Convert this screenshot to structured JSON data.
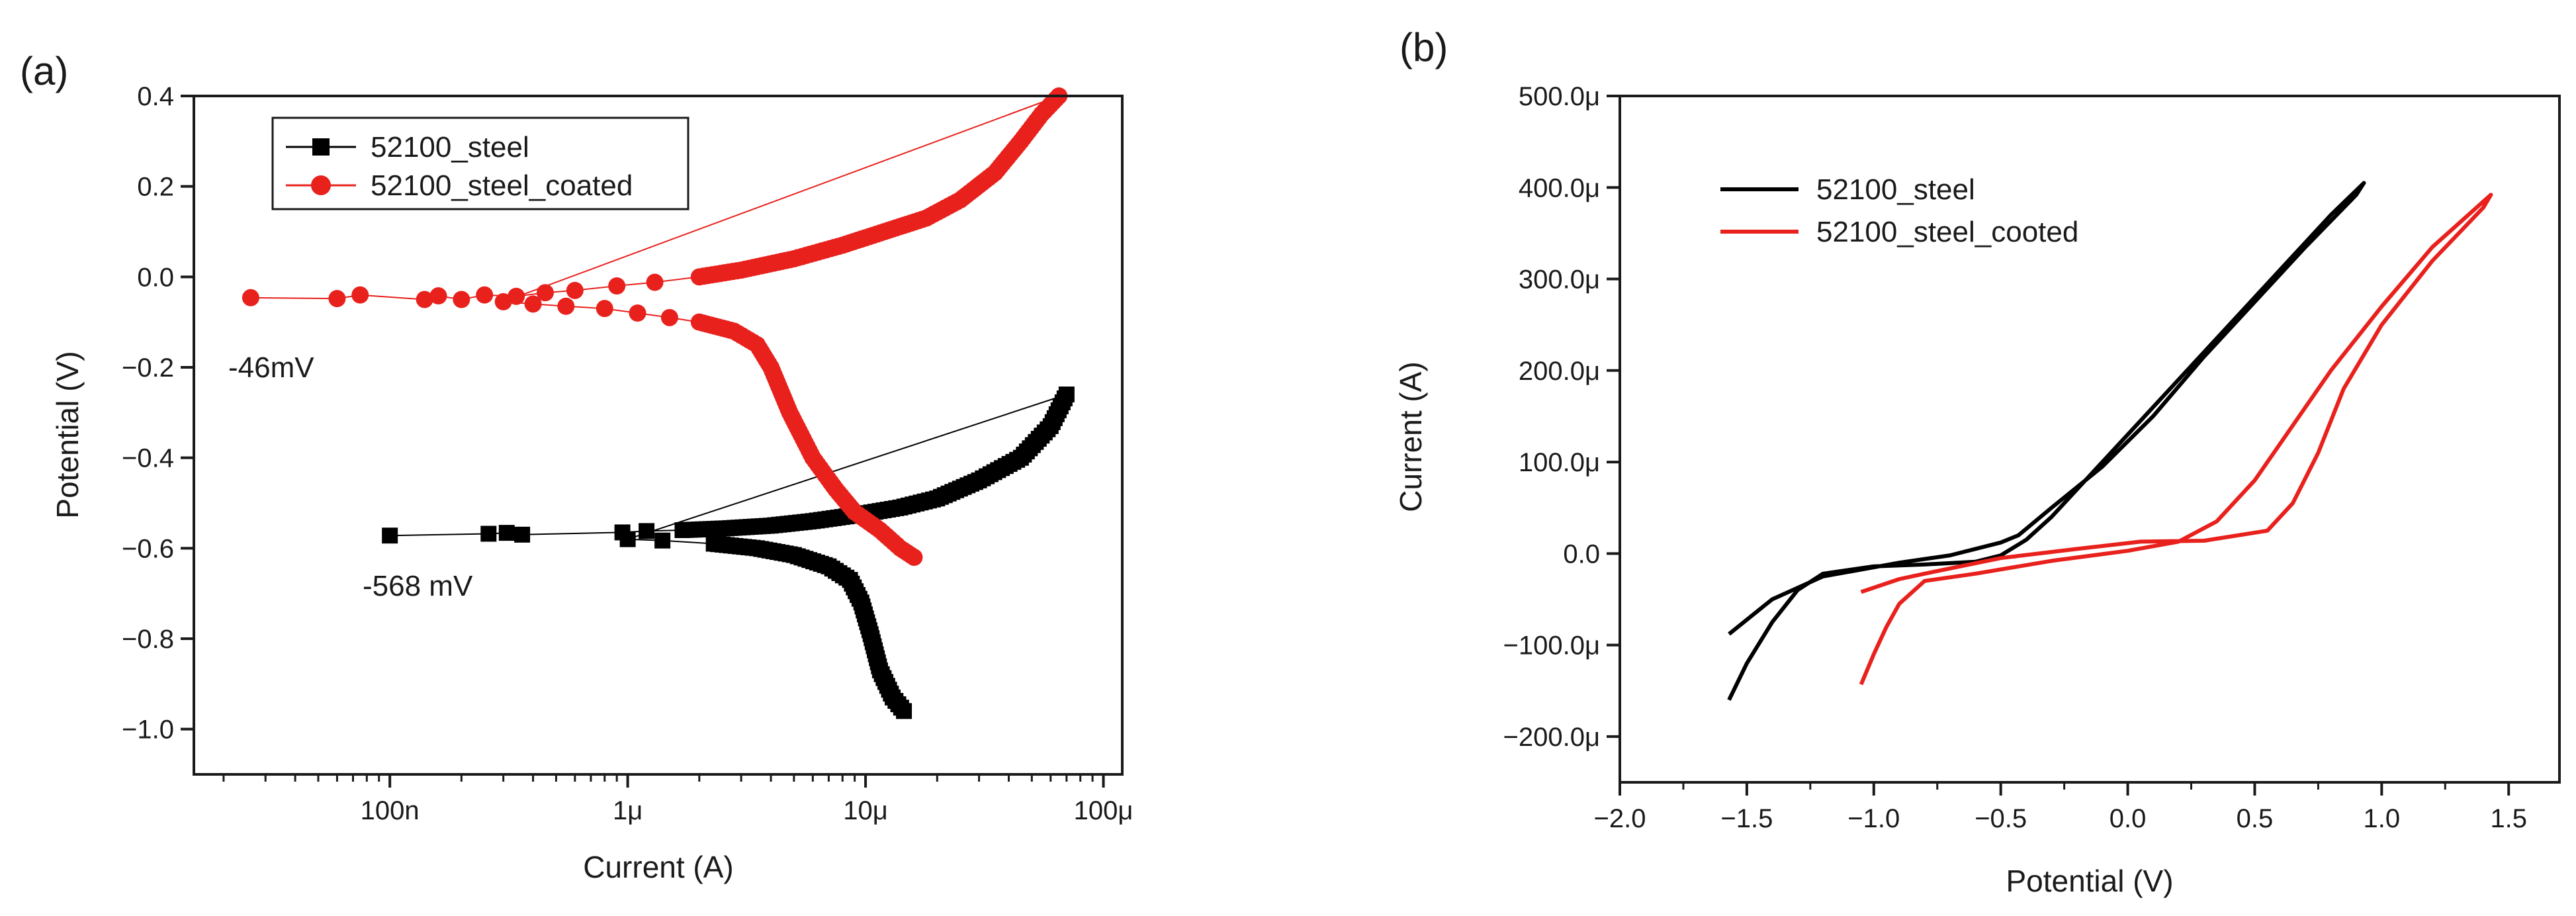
{
  "chart_data": [
    {
      "panel": "(a)",
      "type": "scatter",
      "xlabel": "Current (A)",
      "ylabel": "Potential (V)",
      "xscale": "log",
      "xlim": [
        1.5e-08,
        0.00012
      ],
      "ylim": [
        -1.1,
        0.4
      ],
      "x_ticks": [
        {
          "value": 1e-07,
          "label": "100n"
        },
        {
          "value": 1e-06,
          "label": "1μ"
        },
        {
          "value": 1e-05,
          "label": "10μ"
        },
        {
          "value": 0.0001,
          "label": "100μ"
        }
      ],
      "y_ticks": [
        {
          "value": -1.0,
          "label": "−1.0"
        },
        {
          "value": -0.8,
          "label": "−0.8"
        },
        {
          "value": -0.6,
          "label": "−0.6"
        },
        {
          "value": -0.4,
          "label": "−0.4"
        },
        {
          "value": -0.2,
          "label": "−0.2"
        },
        {
          "value": 0.0,
          "label": "0.0"
        },
        {
          "value": 0.2,
          "label": "0.2"
        },
        {
          "value": 0.4,
          "label": "0.4"
        }
      ],
      "legend_position": "top-left",
      "grid": false,
      "annotations": [
        {
          "text": "-46mV",
          "x": 2.2e-08,
          "y": -0.3
        },
        {
          "text": "-568 mV",
          "x": 7e-08,
          "y": -0.69
        }
      ],
      "series": [
        {
          "name": "52100_steel",
          "color": "#000000",
          "marker": "square",
          "points": [
            [
              1e-07,
              -0.572
            ],
            [
              2.6e-07,
              -0.568
            ],
            [
              3.1e-07,
              -0.566
            ],
            [
              3.6e-07,
              -0.57
            ],
            [
              9.5e-07,
              -0.565
            ],
            [
              1.2e-06,
              -0.562
            ],
            [
              1.7e-06,
              -0.56
            ],
            [
              2.6e-06,
              -0.556
            ],
            [
              4e-06,
              -0.55
            ],
            [
              6e-06,
              -0.54
            ],
            [
              9e-06,
              -0.527
            ],
            [
              1.4e-05,
              -0.51
            ],
            [
              2e-05,
              -0.49
            ],
            [
              3e-05,
              -0.45
            ],
            [
              4.5e-05,
              -0.4
            ],
            [
              6e-05,
              -0.33
            ],
            [
              7e-05,
              -0.26
            ],
            [
              1e-06,
              -0.58
            ],
            [
              1.4e-06,
              -0.583
            ],
            [
              2.3e-06,
              -0.59
            ],
            [
              3.5e-06,
              -0.6
            ],
            [
              5e-06,
              -0.615
            ],
            [
              7e-06,
              -0.64
            ],
            [
              8.6e-06,
              -0.67
            ],
            [
              9.6e-06,
              -0.72
            ],
            [
              1.05e-05,
              -0.79
            ],
            [
              1.15e-05,
              -0.87
            ],
            [
              1.3e-05,
              -0.93
            ],
            [
              1.45e-05,
              -0.96
            ]
          ]
        },
        {
          "name": "52100_steel_coated",
          "color": "#e8211d",
          "marker": "circle",
          "points": [
            [
              2.6e-08,
              -0.046
            ],
            [
              6e-08,
              -0.048
            ],
            [
              7.5e-08,
              -0.04
            ],
            [
              1.4e-07,
              -0.05
            ],
            [
              1.6e-07,
              -0.042
            ],
            [
              2e-07,
              -0.05
            ],
            [
              2.5e-07,
              -0.04
            ],
            [
              3.4e-07,
              -0.043
            ],
            [
              4.5e-07,
              -0.035
            ],
            [
              6e-07,
              -0.03
            ],
            [
              9e-07,
              -0.02
            ],
            [
              1.3e-06,
              -0.012
            ],
            [
              2e-06,
              0.0
            ],
            [
              3e-06,
              0.015
            ],
            [
              5e-06,
              0.04
            ],
            [
              8e-06,
              0.07
            ],
            [
              1.2e-05,
              0.1
            ],
            [
              1.8e-05,
              0.13
            ],
            [
              2.5e-05,
              0.17
            ],
            [
              3.5e-05,
              0.23
            ],
            [
              4.5e-05,
              0.3
            ],
            [
              5.5e-05,
              0.36
            ],
            [
              6.5e-05,
              0.4
            ],
            [
              3e-07,
              -0.055
            ],
            [
              4e-07,
              -0.06
            ],
            [
              5.5e-07,
              -0.065
            ],
            [
              8e-07,
              -0.07
            ],
            [
              1.1e-06,
              -0.08
            ],
            [
              1.5e-06,
              -0.09
            ],
            [
              2e-06,
              -0.1
            ],
            [
              2.8e-06,
              -0.12
            ],
            [
              3.5e-06,
              -0.15
            ],
            [
              4e-06,
              -0.2
            ],
            [
              4.8e-06,
              -0.3
            ],
            [
              6e-06,
              -0.4
            ],
            [
              7.5e-06,
              -0.47
            ],
            [
              9e-06,
              -0.52
            ],
            [
              1.15e-05,
              -0.56
            ],
            [
              1.4e-05,
              -0.6
            ],
            [
              1.6e-05,
              -0.62
            ]
          ]
        }
      ]
    },
    {
      "panel": "(b)",
      "type": "line",
      "xlabel": "Potential (V)",
      "ylabel": "Current (A)",
      "xlim": [
        -2.0,
        1.7
      ],
      "ylim": [
        -250,
        500
      ],
      "y_unit_suffix": "μ",
      "x_ticks": [
        {
          "value": -2.0,
          "label": "−2.0"
        },
        {
          "value": -1.5,
          "label": "−1.5"
        },
        {
          "value": -1.0,
          "label": "−1.0"
        },
        {
          "value": -0.5,
          "label": "−0.5"
        },
        {
          "value": 0.0,
          "label": "0.0"
        },
        {
          "value": 0.5,
          "label": "0.5"
        },
        {
          "value": 1.0,
          "label": "1.0"
        },
        {
          "value": 1.5,
          "label": "1.5"
        }
      ],
      "y_ticks": [
        {
          "value": -200,
          "label": "−200.0μ"
        },
        {
          "value": -100,
          "label": "−100.0μ"
        },
        {
          "value": 0,
          "label": "0.0"
        },
        {
          "value": 100,
          "label": "100.0μ"
        },
        {
          "value": 200,
          "label": "200.0μ"
        },
        {
          "value": 300,
          "label": "300.0μ"
        },
        {
          "value": 400,
          "label": "400.0μ"
        },
        {
          "value": 500,
          "label": "500.0μ"
        }
      ],
      "legend_position": "top-left",
      "grid": false,
      "series": [
        {
          "name": "52100_steel",
          "color": "#000000",
          "points": [
            [
              -1.57,
              -160
            ],
            [
              -1.5,
              -120
            ],
            [
              -1.4,
              -75
            ],
            [
              -1.3,
              -40
            ],
            [
              -1.2,
              -22
            ],
            [
              -1.0,
              -14
            ],
            [
              -0.8,
              -12
            ],
            [
              -0.6,
              -9
            ],
            [
              -0.5,
              -2
            ],
            [
              -0.4,
              15
            ],
            [
              -0.3,
              40
            ],
            [
              -0.2,
              70
            ],
            [
              0.0,
              130
            ],
            [
              0.2,
              190
            ],
            [
              0.4,
              250
            ],
            [
              0.6,
              310
            ],
            [
              0.8,
              370
            ],
            [
              0.93,
              405
            ],
            [
              0.9,
              392
            ],
            [
              0.7,
              335
            ],
            [
              0.5,
              275
            ],
            [
              0.3,
              215
            ],
            [
              0.1,
              150
            ],
            [
              -0.1,
              95
            ],
            [
              -0.3,
              50
            ],
            [
              -0.43,
              20
            ],
            [
              -0.5,
              12
            ],
            [
              -0.7,
              -2
            ],
            [
              -0.9,
              -10
            ],
            [
              -1.2,
              -25
            ],
            [
              -1.4,
              -50
            ],
            [
              -1.57,
              -88
            ]
          ]
        },
        {
          "name": "52100_steel_cooted",
          "color": "#e8211d",
          "points": [
            [
              -1.05,
              -143
            ],
            [
              -1.0,
              -110
            ],
            [
              -0.95,
              -80
            ],
            [
              -0.9,
              -55
            ],
            [
              -0.8,
              -30
            ],
            [
              -0.6,
              -22
            ],
            [
              -0.3,
              -8
            ],
            [
              0.0,
              3
            ],
            [
              0.2,
              13
            ],
            [
              0.35,
              35
            ],
            [
              0.5,
              80
            ],
            [
              0.65,
              140
            ],
            [
              0.8,
              200
            ],
            [
              1.0,
              270
            ],
            [
              1.2,
              335
            ],
            [
              1.43,
              392
            ],
            [
              1.4,
              378
            ],
            [
              1.2,
              320
            ],
            [
              1.0,
              250
            ],
            [
              0.85,
              180
            ],
            [
              0.75,
              110
            ],
            [
              0.65,
              55
            ],
            [
              0.55,
              25
            ],
            [
              0.3,
              14
            ],
            [
              0.05,
              13
            ],
            [
              -0.2,
              5
            ],
            [
              -0.5,
              -5
            ],
            [
              -0.8,
              -22
            ],
            [
              -0.9,
              -28
            ],
            [
              -1.05,
              -42
            ]
          ]
        }
      ]
    }
  ]
}
